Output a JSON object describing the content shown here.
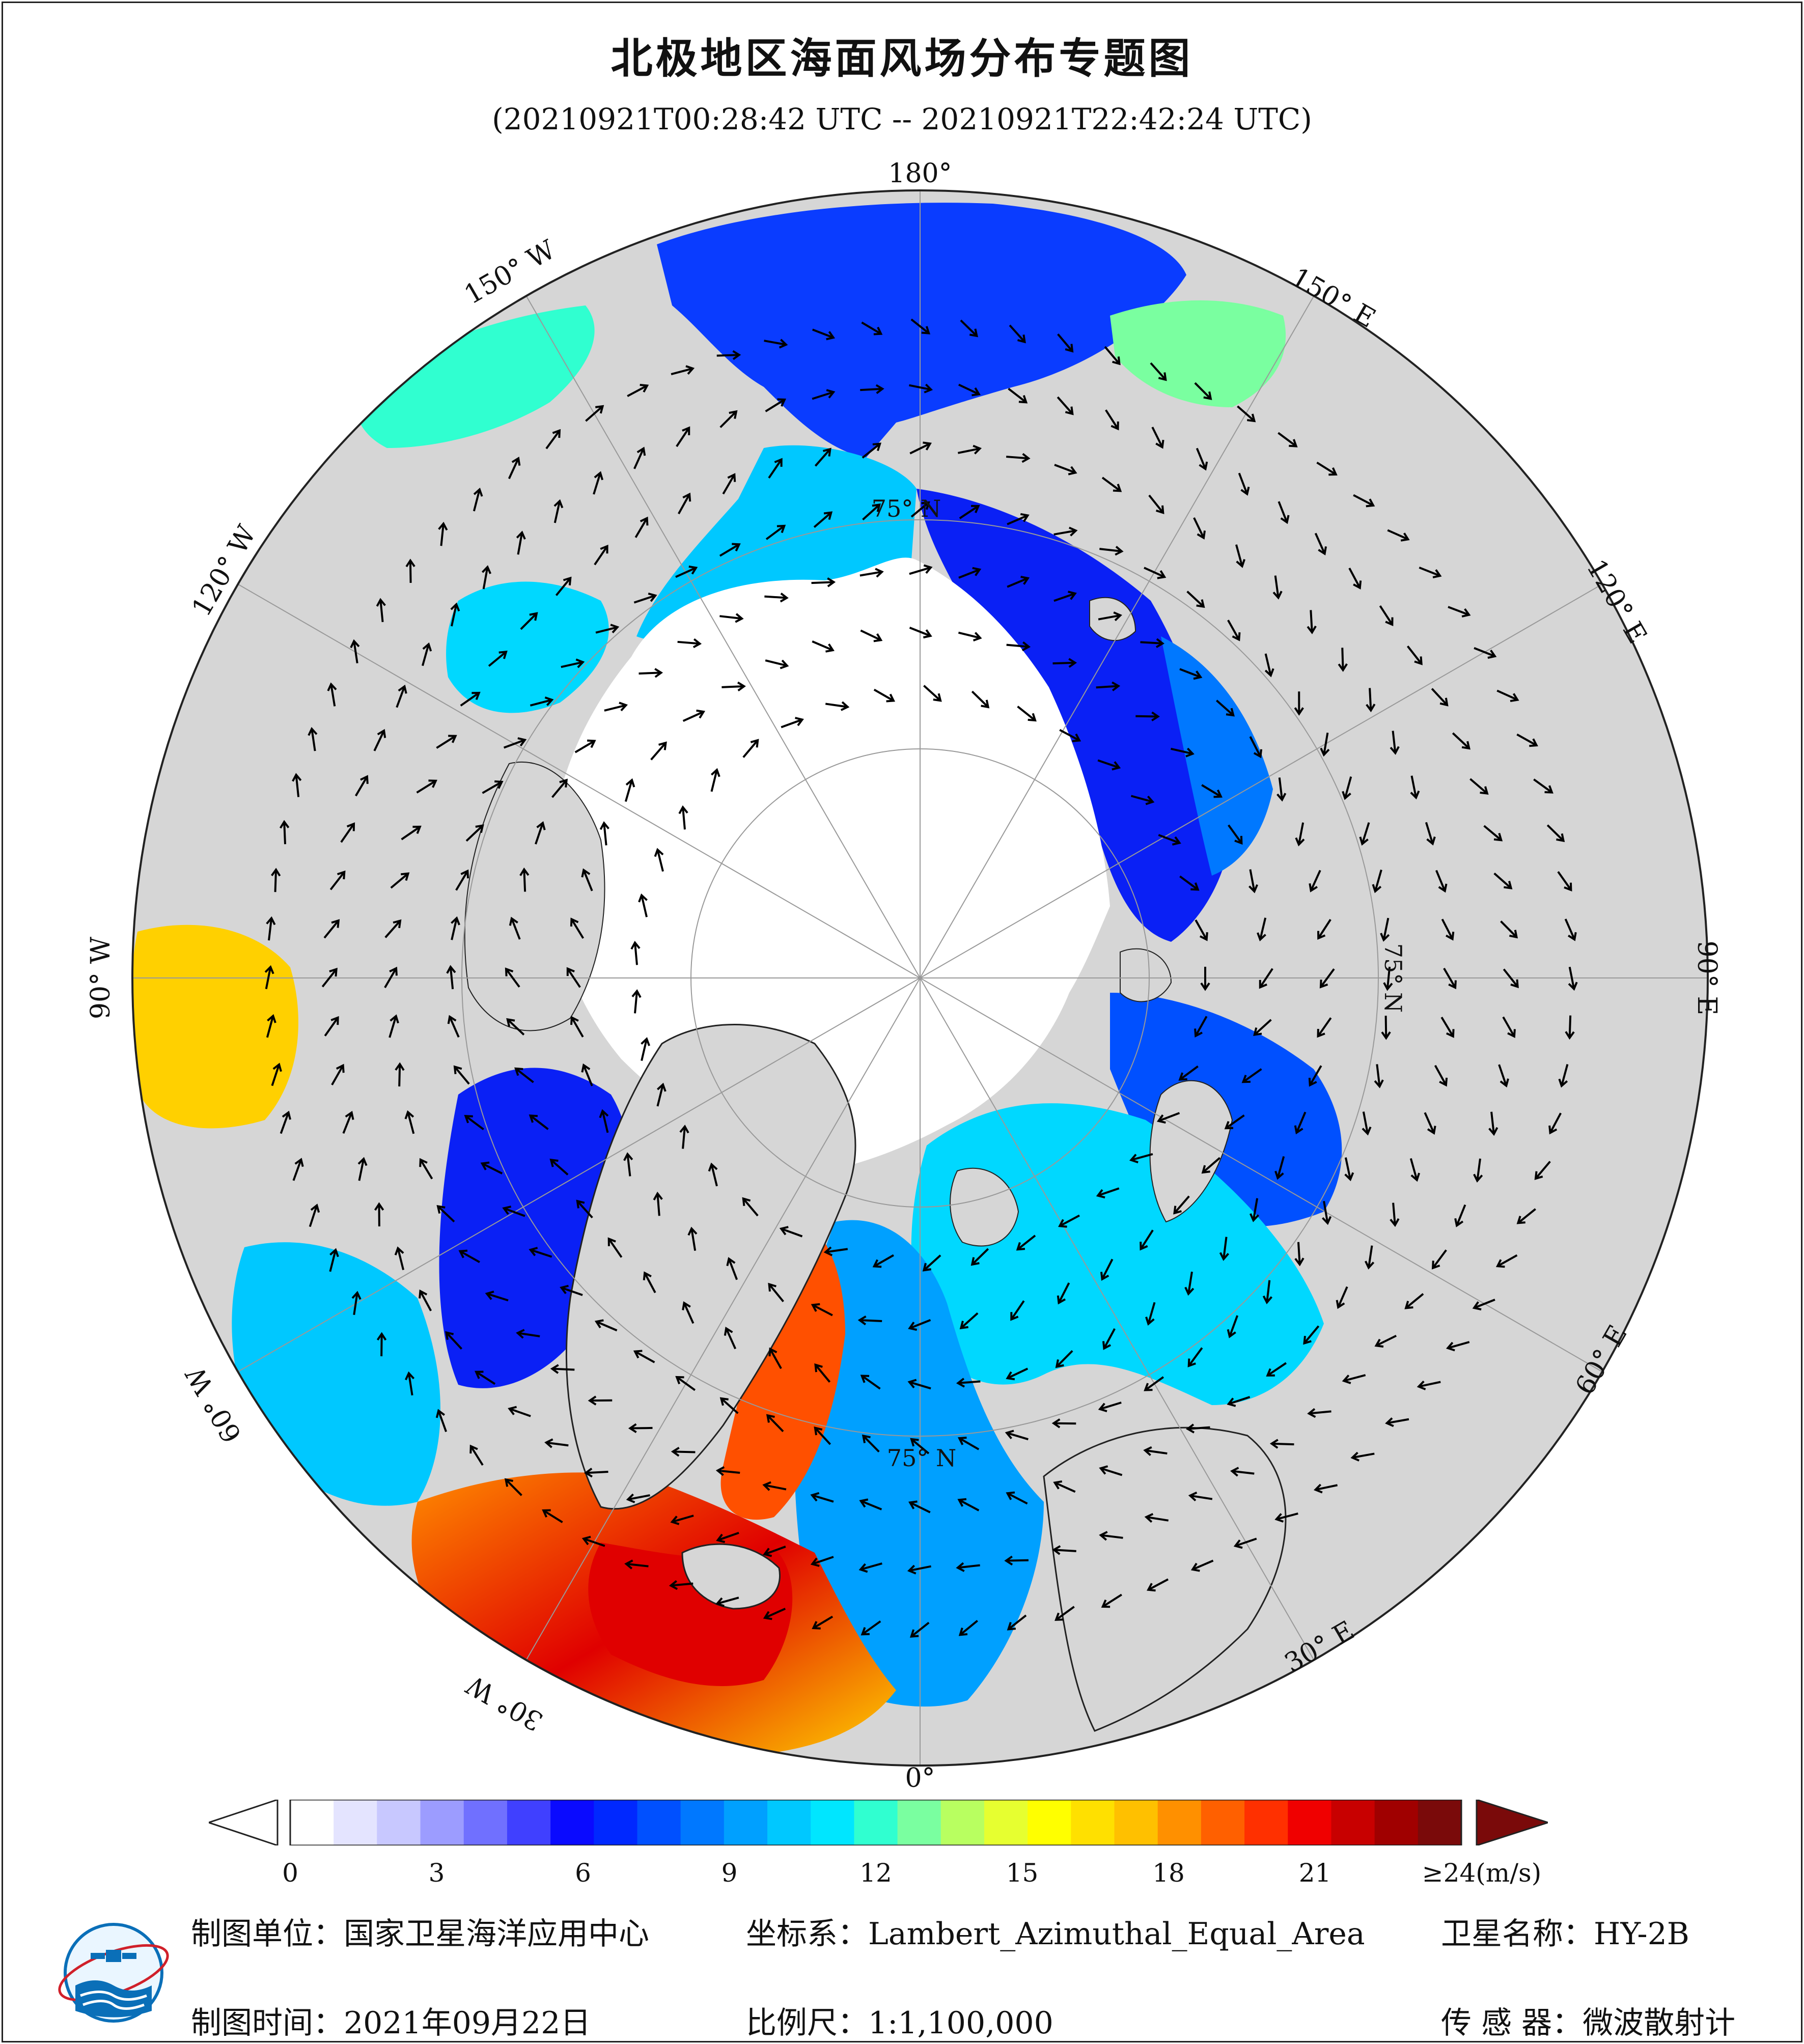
{
  "title": "北极地区海面风场分布专题图",
  "subtitle": "(20210921T00:28:42 UTC -- 20210921T22:42:24 UTC)",
  "map": {
    "projection": "Lambert_Azimuthal_Equal_Area",
    "center": "North Pole",
    "lon_labels": {
      "deg180": "180°",
      "deg150w": "150° W",
      "deg120w": "120° W",
      "deg90w": "90° W",
      "deg60w": "60° W",
      "deg30w": "30° W",
      "deg0": "0°",
      "deg30e": "30° E",
      "deg60e": "60° E",
      "deg90e": "90° E",
      "deg120e": "120° E",
      "deg150e": "150° E"
    },
    "lat_labels": {
      "lat75_top": "75° N",
      "lat75_right": "75° N",
      "lat75_bottom": "75° N"
    },
    "colors": {
      "land": "#d6d6d6",
      "sea_ice": "#ffffff",
      "coast": "#222222",
      "grid": "#999999"
    }
  },
  "colorbar": {
    "ticks": [
      "0",
      "3",
      "6",
      "9",
      "12",
      "15",
      "18",
      "21",
      "≥24(m/s)"
    ],
    "under_color": "#ffffff",
    "over_color": "#7a0a0a",
    "colors": [
      "#ffffff",
      "#e4e4ff",
      "#c8c8ff",
      "#9c9cff",
      "#7070ff",
      "#4040ff",
      "#0a0aff",
      "#0028ff",
      "#0050ff",
      "#0078ff",
      "#00a0ff",
      "#00c8ff",
      "#00e6ff",
      "#30ffd0",
      "#7affa0",
      "#b8ff60",
      "#e6ff30",
      "#ffff00",
      "#ffe000",
      "#ffc000",
      "#ff9000",
      "#ff6000",
      "#ff3000",
      "#f00000",
      "#c80000",
      "#a00000",
      "#7a0a0a"
    ]
  },
  "footer": {
    "unit_label": "制图单位：国家卫星海洋应用中心",
    "coord_label": "坐标系：Lambert_Azimuthal_Equal_Area",
    "satellite_label": "卫星名称：HY-2B",
    "date_label": "制图时间：2021年09月22日",
    "scale_label": "比例尺：1:1,100,000",
    "sensor_label": "传 感 器：微波散射计"
  }
}
